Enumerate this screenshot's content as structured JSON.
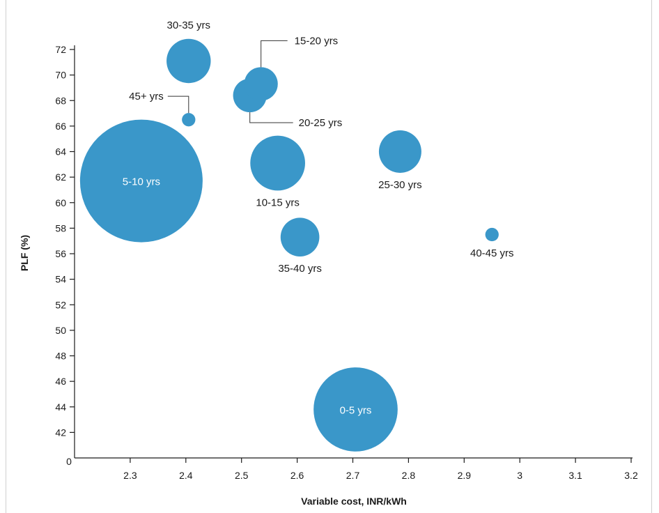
{
  "chart_data": {
    "type": "scatter",
    "subtype": "bubble",
    "title": "",
    "xlabel": "Variable cost, INR/kWh",
    "ylabel": "PLF (%)",
    "xlim": [
      2.2,
      3.2
    ],
    "ylim": [
      40,
      72
    ],
    "x_ticks": [
      "2.3",
      "2.4",
      "2.5",
      "2.6",
      "2.7",
      "2.8",
      "2.9",
      "3",
      "3.1",
      "3.2"
    ],
    "y_ticks": [
      "42",
      "44",
      "46",
      "48",
      "50",
      "52",
      "54",
      "56",
      "58",
      "60",
      "62",
      "64",
      "66",
      "68",
      "70",
      "72"
    ],
    "origin_label": "0",
    "grid": false,
    "bubble_color": "#3a97c9",
    "points": [
      {
        "label": "5-10 yrs",
        "x": 2.32,
        "y": 61.7,
        "size": 100,
        "label_pos": "inside"
      },
      {
        "label": "0-5 yrs",
        "x": 2.705,
        "y": 43.8,
        "size": 47,
        "label_pos": "inside"
      },
      {
        "label": "10-15 yrs",
        "x": 2.565,
        "y": 63.1,
        "size": 20,
        "label_pos": "below"
      },
      {
        "label": "30-35 yrs",
        "x": 2.405,
        "y": 71.1,
        "size": 13,
        "label_pos": "above"
      },
      {
        "label": "25-30 yrs",
        "x": 2.785,
        "y": 64.0,
        "size": 12,
        "label_pos": "below"
      },
      {
        "label": "35-40 yrs",
        "x": 2.605,
        "y": 57.3,
        "size": 10,
        "label_pos": "below"
      },
      {
        "label": "20-25 yrs",
        "x": 2.515,
        "y": 68.4,
        "size": 7.5,
        "label_pos": "leader-right-down"
      },
      {
        "label": "15-20 yrs",
        "x": 2.535,
        "y": 69.3,
        "size": 7.5,
        "label_pos": "leader-right-up"
      },
      {
        "label": "45+ yrs",
        "x": 2.405,
        "y": 66.5,
        "size": 1.2,
        "label_pos": "leader-left-up"
      },
      {
        "label": "40-45 yrs",
        "x": 2.95,
        "y": 57.5,
        "size": 1.2,
        "label_pos": "below"
      }
    ]
  }
}
